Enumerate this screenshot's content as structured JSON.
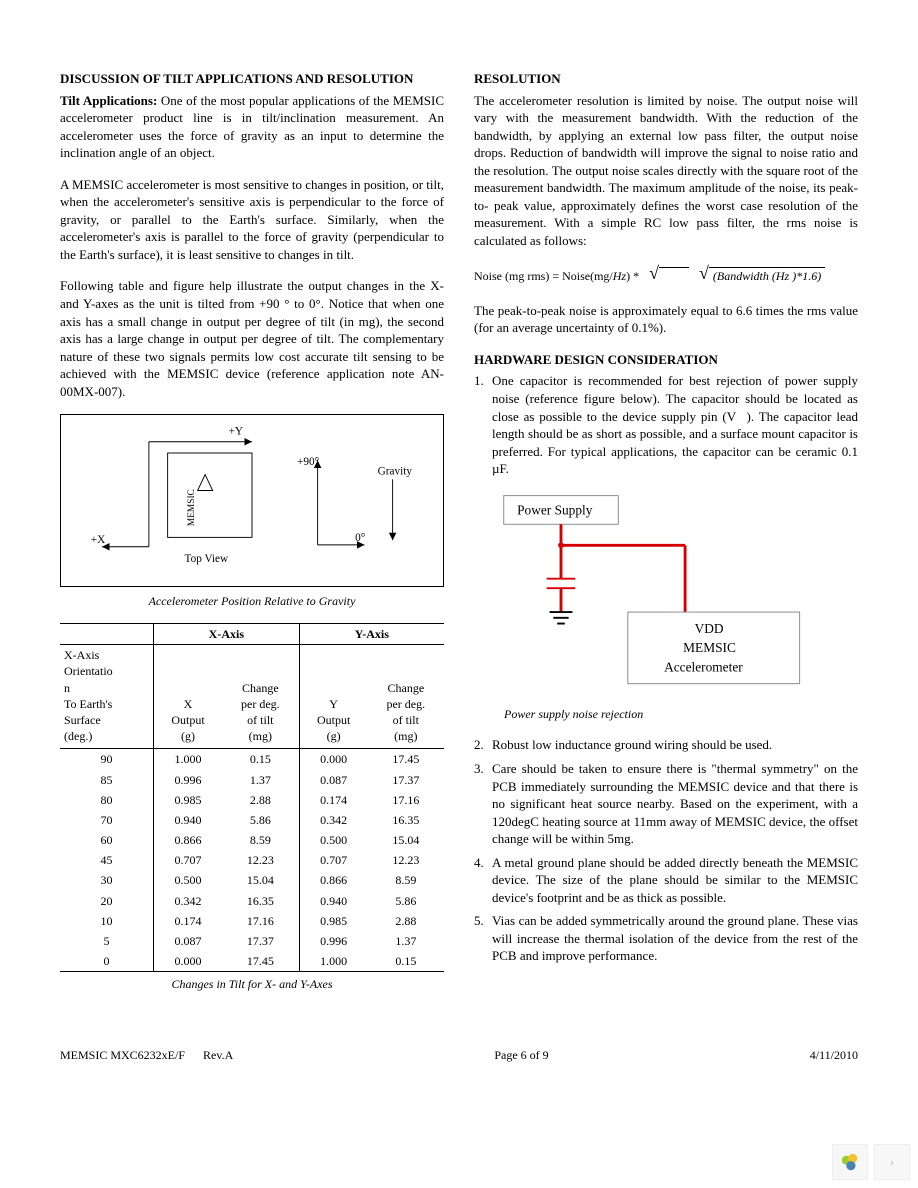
{
  "left": {
    "heading": "DISCUSSION OF TILT APPLICATIONS AND RESOLUTION",
    "p1_bold": "Tilt Applications:",
    "p1": " One of the most popular applications of the MEMSIC accelerometer product line is in tilt/inclination measurement.  An accelerometer uses the force of gravity as an input to determine the inclination angle of an object.",
    "p2": "A MEMSIC accelerometer is most sensitive to changes in position, or tilt, when the accelerometer's sensitive axis is perpendicular to the force of gravity, or parallel to the Earth's surface.  Similarly, when the accelerometer's axis is parallel to the force of gravity (perpendicular to the Earth's surface), it is least sensitive to changes in tilt.",
    "p3": "Following table and figure help illustrate the output changes in the X- and Y-axes as the unit is tilted from +90 ° to 0°.  Notice that when one axis has a small change in output per degree of tilt (in mg), the second axis has a large change in output per degree of tilt.  The complementary nature of these two signals permits low cost accurate tilt sensing to be achieved with the MEMSIC device (reference application note AN-00MX-007).",
    "fig1_caption": "Accelerometer Position Relative to Gravity",
    "fig1": {
      "plusY": "+Y",
      "plusX": "+X",
      "memsic": "MEMSIC",
      "topview": "Top View",
      "p90": "+90°",
      "zero": "0°",
      "gravity": "Gravity"
    },
    "table": {
      "h_xaxis": "X-Axis",
      "h_yaxis": "Y-Axis",
      "h_orient_l1": "X-Axis",
      "h_orient_l2": "Orientatio",
      "h_orient_l3": "n",
      "h_orient_l4": "To Earth's",
      "h_orient_l5": "Surface",
      "h_orient_l6": "(deg.)",
      "h_xout_l1": "X",
      "h_xout_l2": "Output",
      "h_xout_l3": "(g)",
      "h_xchg_l1": "Change",
      "h_xchg_l2": "per deg.",
      "h_xchg_l3": "of tilt",
      "h_xchg_l4": "(mg)",
      "h_yout_l1": "Y",
      "h_yout_l2": "Output",
      "h_yout_l3": "(g)",
      "h_ychg_l1": "Change",
      "h_ychg_l2": "per deg.",
      "h_ychg_l3": "of tilt",
      "h_ychg_l4": "(mg)",
      "rows": [
        [
          "90",
          "1.000",
          "0.15",
          "0.000",
          "17.45"
        ],
        [
          "85",
          "0.996",
          "1.37",
          "0.087",
          "17.37"
        ],
        [
          "80",
          "0.985",
          "2.88",
          "0.174",
          "17.16"
        ],
        [
          "70",
          "0.940",
          "5.86",
          "0.342",
          "16.35"
        ],
        [
          "60",
          "0.866",
          "8.59",
          "0.500",
          "15.04"
        ],
        [
          "45",
          "0.707",
          "12.23",
          "0.707",
          "12.23"
        ],
        [
          "30",
          "0.500",
          "15.04",
          "0.866",
          "8.59"
        ],
        [
          "20",
          "0.342",
          "16.35",
          "0.940",
          "5.86"
        ],
        [
          "10",
          "0.174",
          "17.16",
          "0.985",
          "2.88"
        ],
        [
          "5",
          "0.087",
          "17.37",
          "0.996",
          "1.37"
        ],
        [
          "0",
          "0.000",
          "17.45",
          "1.000",
          "0.15"
        ]
      ],
      "caption": "Changes in Tilt for X- and Y-Axes"
    }
  },
  "right": {
    "heading1": "RESOLUTION",
    "p1": "The accelerometer resolution is limited by noise. The output noise will vary with the measurement bandwidth. With the reduction of the bandwidth, by applying an external low pass filter, the output noise drops. Reduction of bandwidth will improve the signal to noise ratio and the resolution. The output noise scales directly with the square root of the measurement bandwidth. The maximum amplitude of the noise, its peak- to- peak value, approximately defines the worst case resolution of the measurement. With a simple RC low pass filter, the rms noise is calculated as follows:",
    "formula_lhs": "Noise (mg rms) = Noise(mg/",
    "formula_hz1": "Hz",
    "formula_mid": ") *",
    "formula_rhs_inner": "(Bandwidth  (Hz )*1.6)",
    "p2": "The peak-to-peak noise is approximately equal to 6.6 times the rms value (for an average uncertainty of 0.1%).",
    "heading2": "HARDWARE DESIGN CONSIDERATION",
    "li1_num": "1.",
    "li1": "One capacitor is recommended for best rejection of power supply noise (reference figure below). The capacitor should be located as close as possible to the device supply pin (V    ). The capacitor lead length should be as short as possible, and a surface mount capacitor is preferred. For typical applications, the capacitor can be ceramic 0.1 µF.",
    "circuit": {
      "ps": "Power Supply",
      "vdd": "VDD",
      "memsic": "MEMSIC",
      "accel": "Accelerometer",
      "caption": "Power supply noise rejection",
      "wire_color": "#d40000",
      "box_stroke": "#888888"
    },
    "li2_num": "2.",
    "li2": "Robust low inductance ground wiring should be used.",
    "li3_num": "3.",
    "li3": "Care should be taken to ensure there is \"thermal symmetry\" on the PCB immediately surrounding the MEMSIC device and that there is no significant heat source nearby. Based on the experiment, with a 120degC heating source at 11mm away of MEMSIC device, the offset change will be within 5mg.",
    "li4_num": "4.",
    "li4": "A metal ground plane should be added directly beneath the MEMSIC device.  The size of the plane should be similar to the MEMSIC device's footprint and be as thick as possible.",
    "li5_num": "5.",
    "li5": "Vias can be added symmetrically around the ground plane.  These vias will increase the thermal isolation of the device from the rest of the PCB and improve performance."
  },
  "footer": {
    "left": "MEMSIC MXC6232xE/F",
    "rev": "Rev.A",
    "center": "Page 6 of 9",
    "right": "4/11/2010"
  }
}
